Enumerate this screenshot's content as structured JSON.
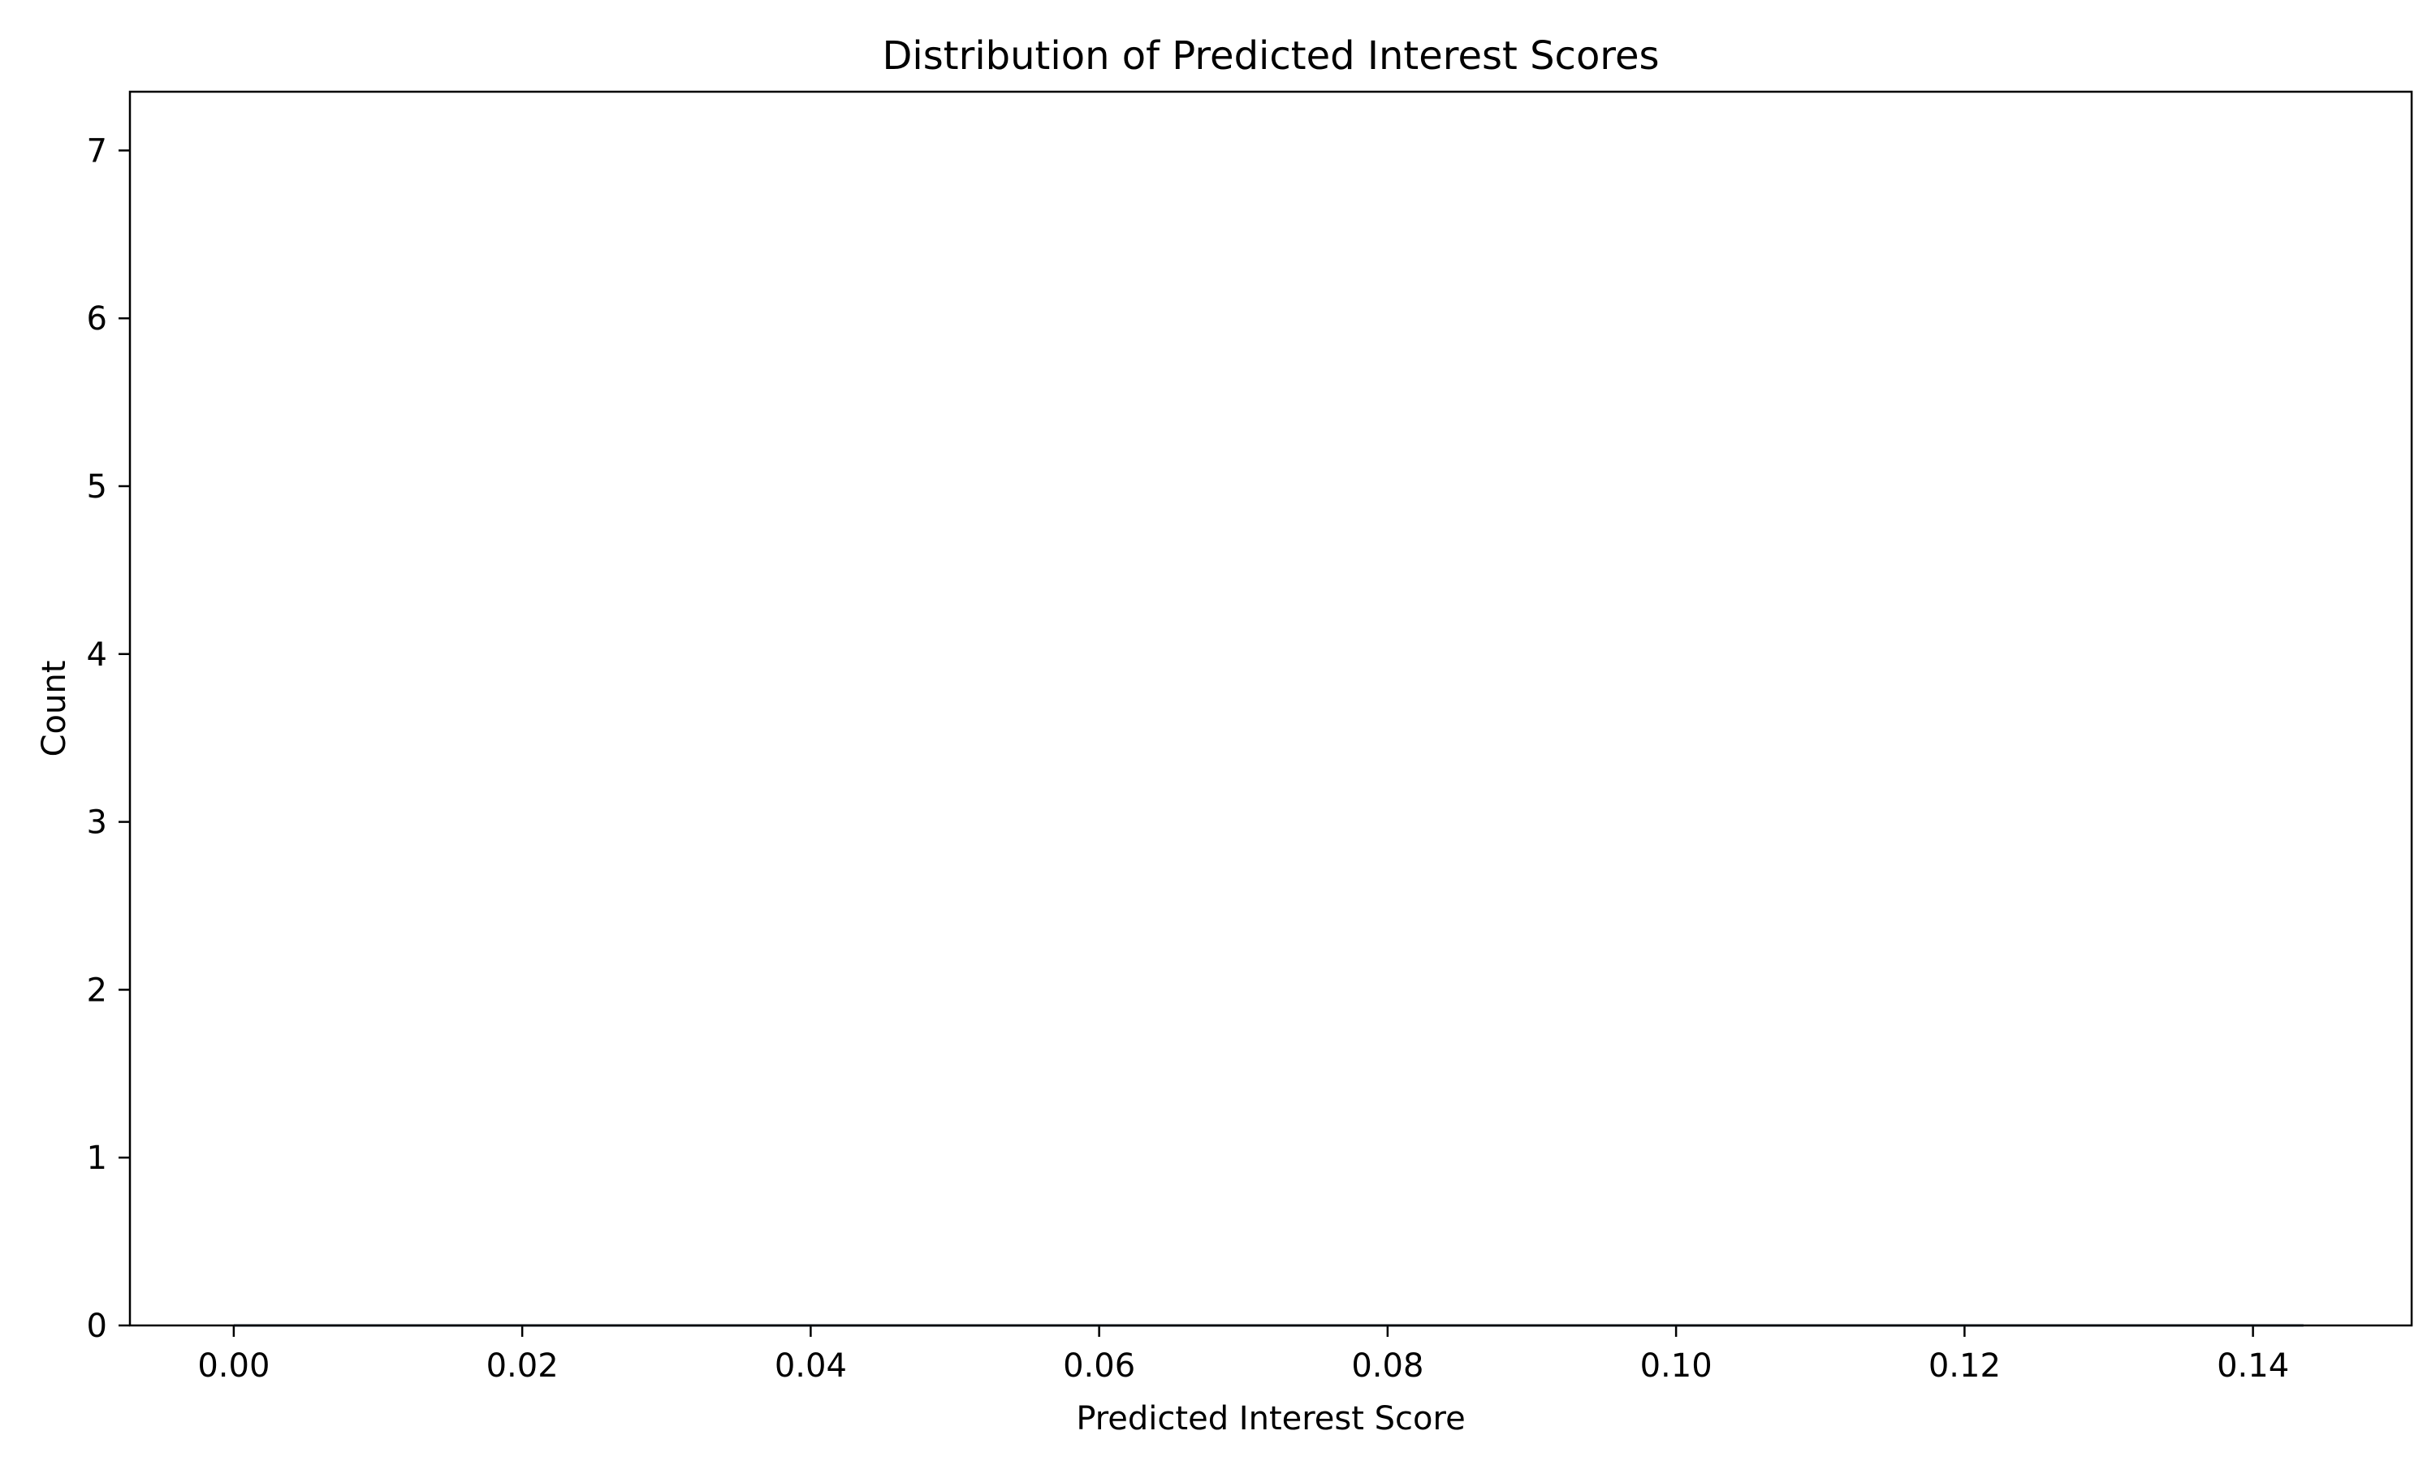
{
  "chart_data": {
    "type": "line",
    "title": "Distribution of Predicted Interest Scores",
    "xlabel": "Predicted Interest Score",
    "ylabel": "Count",
    "xlim": [
      -0.0072,
      0.151
    ],
    "ylim": [
      0,
      7.35
    ],
    "x_ticks": [
      0.0,
      0.02,
      0.04,
      0.06,
      0.08,
      0.1,
      0.12,
      0.14
    ],
    "x_tick_labels": [
      "0.00",
      "0.02",
      "0.04",
      "0.06",
      "0.08",
      "0.10",
      "0.12",
      "0.14"
    ],
    "y_ticks": [
      0,
      1,
      2,
      3,
      4,
      5,
      6,
      7
    ],
    "y_tick_labels": [
      "0",
      "1",
      "2",
      "3",
      "4",
      "5",
      "6",
      "7"
    ],
    "grid": false,
    "series": [
      {
        "color": "#1f3b57",
        "x": [
          0.0,
          0.02,
          0.04,
          0.06,
          0.08,
          0.1,
          0.12,
          0.1435
        ],
        "y": [
          0,
          0,
          0,
          0,
          0,
          0,
          0,
          0
        ]
      }
    ]
  }
}
